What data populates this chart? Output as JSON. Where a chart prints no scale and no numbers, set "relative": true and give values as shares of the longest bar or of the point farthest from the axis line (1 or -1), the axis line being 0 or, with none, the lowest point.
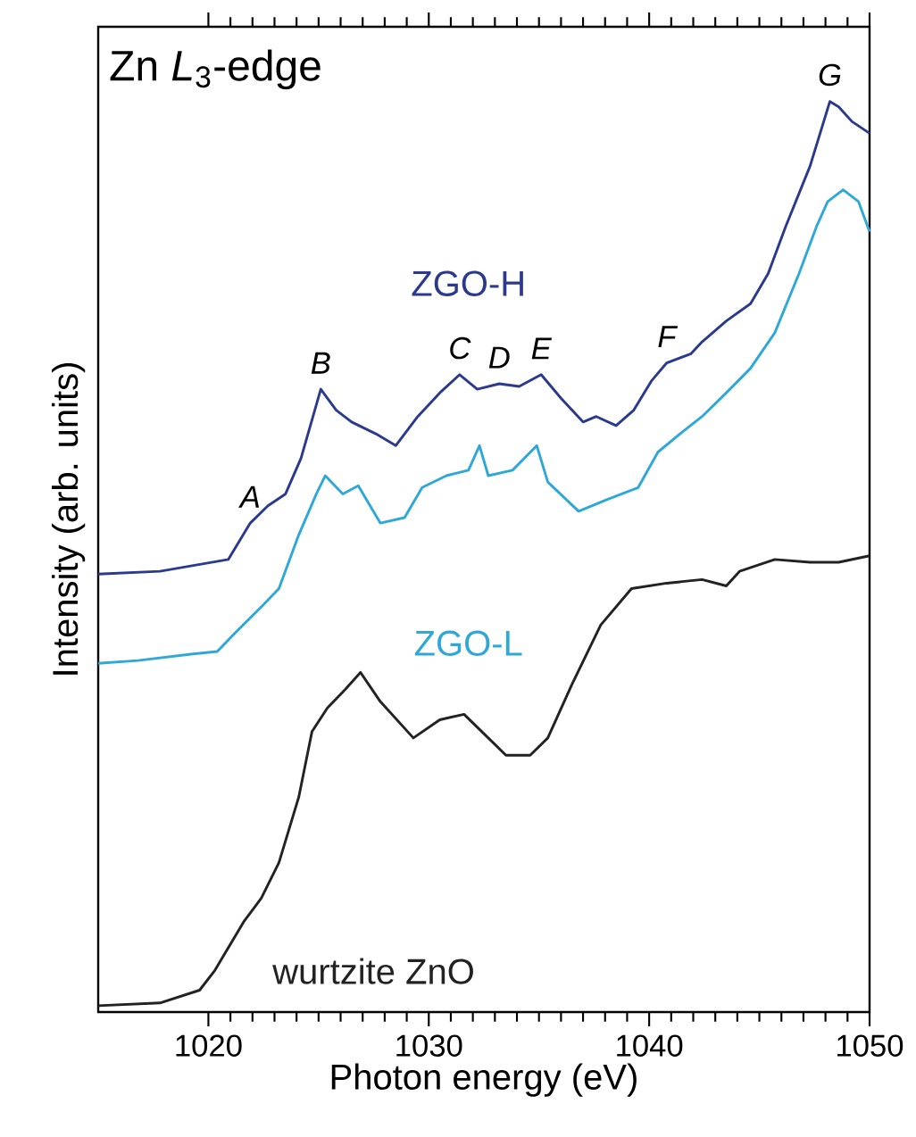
{
  "chart_data": {
    "type": "line",
    "title": "Zn *L*$_{3}$-edge",
    "xlabel": "Photon energy (eV)",
    "ylabel": "Intensity (arb. units)",
    "relative": true,
    "xlim": [
      1015,
      1050
    ],
    "xticks": [
      1020,
      1030,
      1040,
      1050
    ],
    "series": [
      {
        "name": "ZGO-H",
        "color": "#2b3a8c",
        "x": [
          1015,
          1017.8,
          1020.9,
          1021.9,
          1022.7,
          1023.5,
          1024.2,
          1025.1,
          1025.8,
          1026.5,
          1027.6,
          1028.5,
          1029.5,
          1030.5,
          1031.4,
          1032.2,
          1033.2,
          1034.1,
          1035.1,
          1036.0,
          1037.0,
          1037.6,
          1038.5,
          1039.3,
          1040.1,
          1040.8,
          1041.9,
          1042.4,
          1043.5,
          1044.6,
          1045.4,
          1046.2,
          1047.3,
          1048.2,
          1048.6,
          1049.2,
          1050
        ],
        "values": [
          0.481,
          0.484,
          0.497,
          0.537,
          0.556,
          0.569,
          0.608,
          0.684,
          0.661,
          0.648,
          0.635,
          0.622,
          0.654,
          0.68,
          0.7,
          0.684,
          0.69,
          0.687,
          0.7,
          0.674,
          0.648,
          0.654,
          0.644,
          0.661,
          0.693,
          0.713,
          0.723,
          0.736,
          0.759,
          0.778,
          0.811,
          0.863,
          0.929,
          1.0,
          0.994,
          0.978,
          0.965
        ]
      },
      {
        "name": "ZGO-L",
        "color": "#2fa8d8",
        "x": [
          1015,
          1016.8,
          1019.2,
          1020.4,
          1021.2,
          1022.4,
          1023.2,
          1024.1,
          1024.9,
          1025.3,
          1026.1,
          1026.8,
          1027.8,
          1028.9,
          1029.7,
          1030.8,
          1031.8,
          1032.3,
          1032.7,
          1033.8,
          1034.9,
          1035.4,
          1036.8,
          1038.1,
          1039.5,
          1040.4,
          1041.4,
          1042.4,
          1043.5,
          1044.6,
          1045.7,
          1046.8,
          1047.6,
          1048.1,
          1048.8,
          1049.5,
          1050
        ],
        "values": [
          0.383,
          0.386,
          0.393,
          0.396,
          0.416,
          0.445,
          0.465,
          0.524,
          0.569,
          0.589,
          0.569,
          0.578,
          0.537,
          0.543,
          0.576,
          0.589,
          0.595,
          0.622,
          0.589,
          0.595,
          0.622,
          0.582,
          0.55,
          0.563,
          0.576,
          0.615,
          0.635,
          0.654,
          0.68,
          0.707,
          0.746,
          0.811,
          0.863,
          0.89,
          0.903,
          0.89,
          0.857
        ]
      },
      {
        "name": "wurtzite ZnO",
        "color": "#222222",
        "x": [
          1015,
          1017.8,
          1019.6,
          1020.3,
          1021.6,
          1022.4,
          1023.2,
          1024.1,
          1024.7,
          1025.4,
          1026.2,
          1026.9,
          1027.8,
          1029.3,
          1030.5,
          1031.6,
          1032.7,
          1033.5,
          1034.6,
          1035.4,
          1036.5,
          1037.8,
          1039.2,
          1040.8,
          1042.4,
          1043.5,
          1044.1,
          1045.7,
          1047.3,
          1048.6,
          1050
        ],
        "values": [
          0.007,
          0.01,
          0.024,
          0.046,
          0.099,
          0.125,
          0.164,
          0.236,
          0.308,
          0.334,
          0.354,
          0.373,
          0.341,
          0.301,
          0.321,
          0.327,
          0.301,
          0.282,
          0.282,
          0.301,
          0.36,
          0.425,
          0.465,
          0.471,
          0.475,
          0.468,
          0.484,
          0.497,
          0.494,
          0.494,
          0.501
        ]
      }
    ],
    "annotations": [
      {
        "text": "A",
        "x": 1021.9,
        "y": 0.537
      },
      {
        "text": "B",
        "x": 1025.1,
        "y": 0.684
      },
      {
        "text": "C",
        "x": 1031.4,
        "y": 0.7
      },
      {
        "text": "D",
        "x": 1033.2,
        "y": 0.69
      },
      {
        "text": "E",
        "x": 1035.1,
        "y": 0.7
      },
      {
        "text": "F",
        "x": 1040.8,
        "y": 0.713
      },
      {
        "text": "G",
        "x": 1048.2,
        "y": 1.0
      }
    ]
  }
}
